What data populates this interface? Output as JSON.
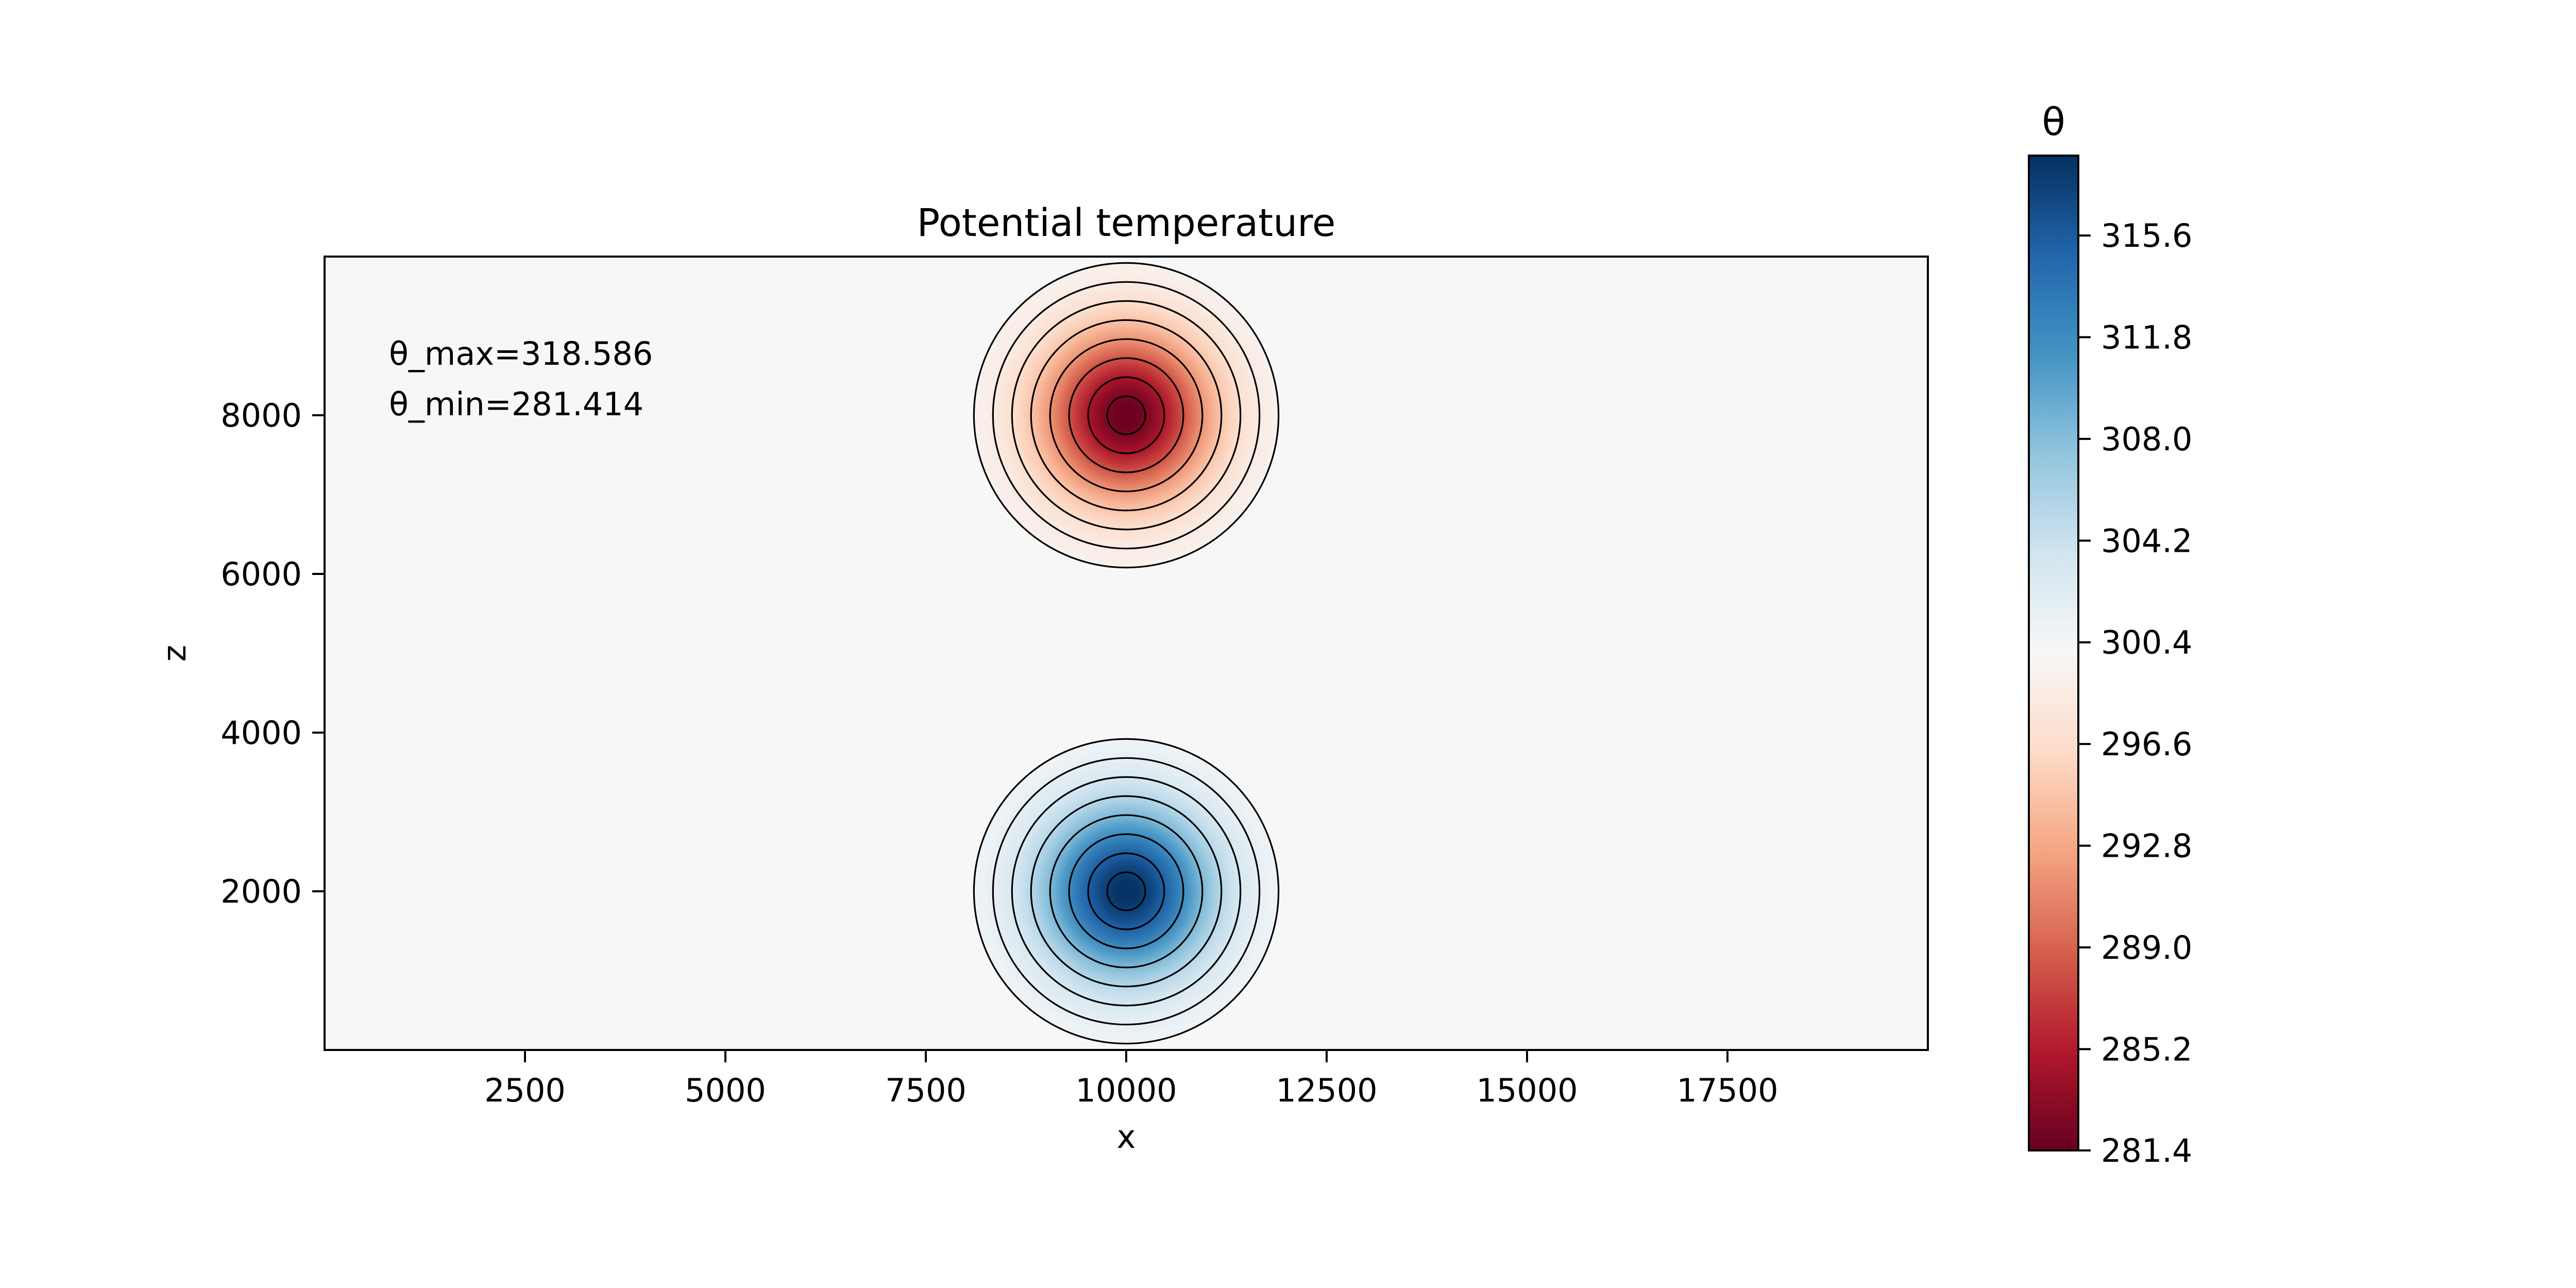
{
  "chart_data": {
    "type": "heatmap",
    "title": "Potential temperature",
    "xlabel": "x",
    "ylabel": "z",
    "xlim": [
      0,
      20000
    ],
    "ylim": [
      0,
      10000
    ],
    "xticks": [
      2500,
      5000,
      7500,
      10000,
      12500,
      15000,
      17500
    ],
    "yticks": [
      2000,
      4000,
      6000,
      8000
    ],
    "background_value": 300,
    "annotations": [
      "θ_max=318.586",
      "θ_min=281.414"
    ],
    "features": [
      {
        "kind": "warm-bubble",
        "center_x": 10000,
        "center_z": 2000,
        "radius": 1900,
        "peak_value": 318.586
      },
      {
        "kind": "cold-bubble",
        "center_x": 10000,
        "center_z": 8000,
        "radius": 1900,
        "peak_value": 281.414
      }
    ],
    "contour_levels": 8,
    "colorbar": {
      "label": "θ",
      "min": 281.414,
      "max": 318.586,
      "ticks": [
        281.4,
        285.2,
        289.0,
        292.8,
        296.6,
        300.4,
        304.2,
        308.0,
        311.8,
        315.6
      ],
      "tick_labels": [
        "281.4",
        "285.2",
        "289.0",
        "292.8",
        "296.6",
        "300.4",
        "304.2",
        "308.0",
        "311.8",
        "315.6"
      ],
      "colormap": "RdBu",
      "colormap_stops": [
        "#67001f",
        "#b2182b",
        "#d6604d",
        "#f4a582",
        "#fddbc7",
        "#f7f7f7",
        "#d1e5f0",
        "#92c5de",
        "#4393c3",
        "#2166ac",
        "#053061"
      ]
    }
  }
}
